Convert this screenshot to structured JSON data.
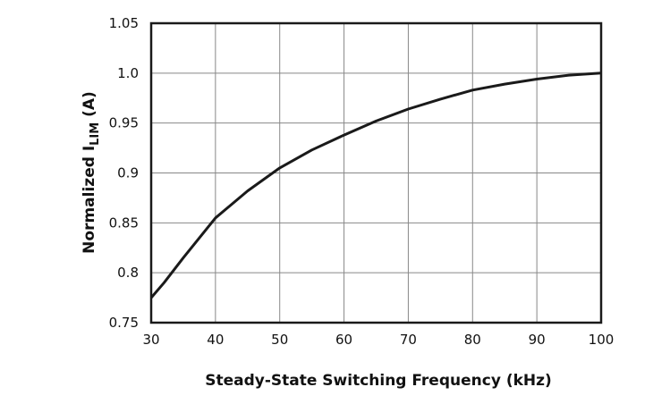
{
  "chart_data": {
    "type": "line",
    "title": "",
    "xlabel": "Steady-State Switching Frequency (kHz)",
    "ylabel_main": "Normalized I",
    "ylabel_sub": "LIM",
    "ylabel_unit": " (A)",
    "xlim": [
      30,
      100
    ],
    "ylim": [
      0.75,
      1.05
    ],
    "xticks": [
      "30",
      "40",
      "50",
      "60",
      "70",
      "80",
      "90",
      "100"
    ],
    "yticks": [
      "0.75",
      "0.8",
      "0.85",
      "0.9",
      "0.95",
      "1.0",
      "1.05"
    ],
    "grid": true,
    "line_color": "#1a1a1a",
    "series": [
      {
        "x": [
          30,
          32,
          35,
          40,
          45,
          50,
          55,
          60,
          65,
          70,
          75,
          80,
          85,
          90,
          95,
          100
        ],
        "y": [
          0.775,
          0.79,
          0.815,
          0.855,
          0.882,
          0.905,
          0.923,
          0.938,
          0.952,
          0.964,
          0.974,
          0.983,
          0.989,
          0.994,
          0.998,
          1.0
        ]
      }
    ]
  }
}
